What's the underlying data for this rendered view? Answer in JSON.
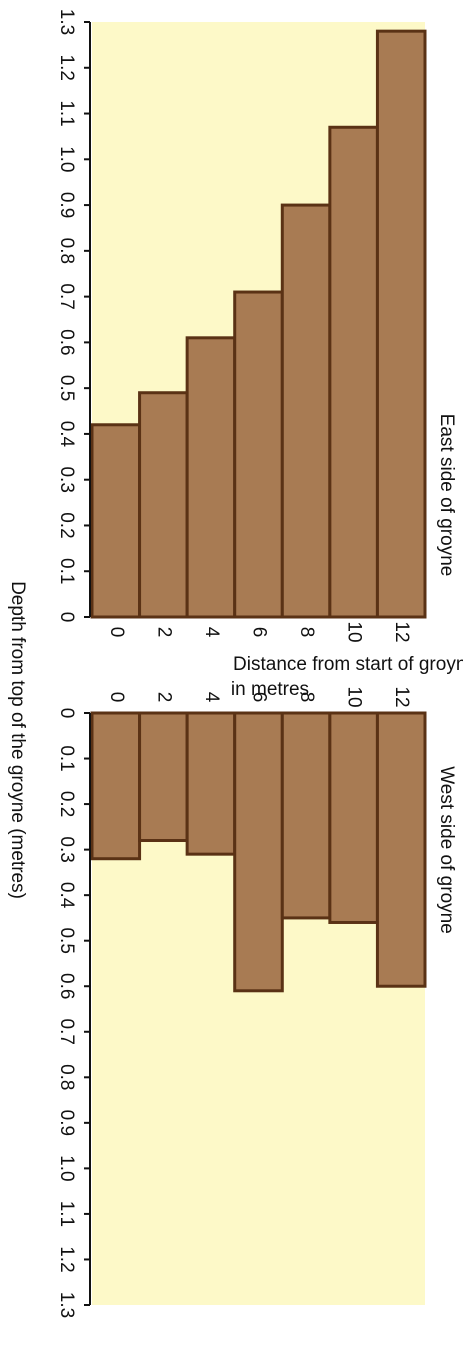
{
  "chart_data": [
    {
      "type": "bar",
      "title": "East side of groyne",
      "categories": [
        0,
        2,
        4,
        6,
        8,
        10,
        12
      ],
      "values": [
        0.42,
        0.49,
        0.61,
        0.71,
        0.9,
        1.07,
        1.28
      ],
      "color": "#a87b53",
      "ylim": [
        0,
        1.3
      ],
      "inverted": false,
      "yticks": [
        0,
        0.1,
        0.2,
        0.3,
        0.4,
        0.5,
        0.6,
        0.7,
        0.8,
        0.9,
        {
          "value": 1,
          "label": "1.0"
        },
        1.1,
        1.2,
        1.3
      ]
    },
    {
      "type": "bar",
      "title": "West side of groyne",
      "categories": [
        0,
        2,
        4,
        6,
        8,
        10,
        12
      ],
      "values": [
        0.32,
        0.28,
        0.31,
        0.61,
        0.45,
        0.46,
        0.6
      ],
      "color": "#a87b53",
      "ylim": [
        0,
        1.3
      ],
      "inverted": true,
      "yticks": [
        0,
        0.1,
        0.2,
        0.3,
        0.4,
        0.5,
        0.6,
        0.7,
        0.8,
        0.9,
        {
          "value": 1,
          "label": "1.0"
        },
        1.1,
        1.2,
        1.3
      ]
    }
  ],
  "axis_labels": {
    "x": [
      "Distance from start of groyne",
      "in metres"
    ],
    "y": "Depth from top of the groyne (metres)"
  }
}
